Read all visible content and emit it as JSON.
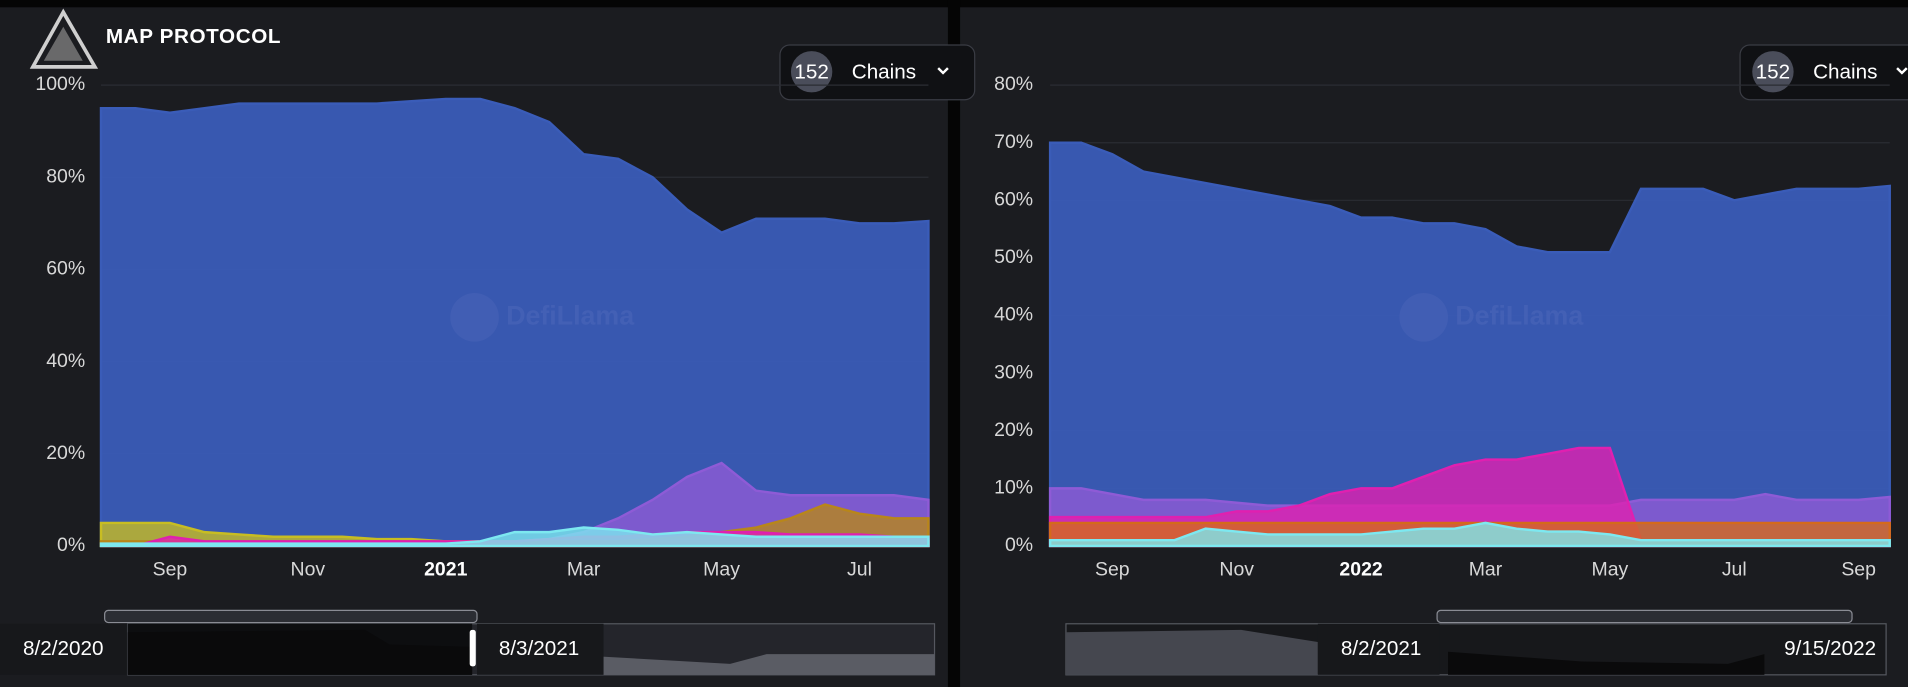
{
  "header": {
    "logo": "MAP PROTOCOL"
  },
  "panels": [
    {
      "chain_count": 152,
      "chain_button": "Chains",
      "watermark": "DefiLlama",
      "range_start": "8/2/2020",
      "range_end": "8/3/2021"
    },
    {
      "chain_count": 152,
      "chain_button": "Chains",
      "watermark": "DefiLlama",
      "range_start": "8/2/2021",
      "range_end": "9/15/2022"
    }
  ],
  "chart_data": [
    {
      "type": "area",
      "categories": [
        null,
        null,
        "Sep",
        null,
        null,
        null,
        "Nov",
        null,
        null,
        null,
        "2021",
        null,
        null,
        null,
        "Mar",
        null,
        null,
        null,
        "May",
        null,
        null,
        null,
        "Jul",
        null,
        null
      ],
      "ylim": [
        0,
        100
      ],
      "yticks": [
        {
          "value": 0,
          "label": "0%"
        },
        {
          "value": 20,
          "label": "20%"
        },
        {
          "value": 40,
          "label": "40%"
        },
        {
          "value": 60,
          "label": "60%"
        },
        {
          "value": 80,
          "label": "80%"
        },
        {
          "value": 100,
          "label": "100%"
        }
      ],
      "grid": true,
      "series": [
        {
          "color": "#3a5cb8",
          "values": [
            95,
            95,
            94,
            95,
            96,
            96,
            96,
            96,
            96,
            96.5,
            97,
            97,
            95,
            92,
            85,
            84,
            80,
            73,
            68,
            71,
            71,
            71,
            70,
            70,
            70.5
          ]
        },
        {
          "color": "#8e5bd6",
          "values": [
            0.5,
            0.5,
            0.5,
            0.5,
            0.5,
            0.5,
            0.5,
            0.5,
            0.5,
            0.5,
            0.5,
            0.5,
            1,
            1.5,
            3,
            6,
            10,
            15,
            18,
            12,
            11,
            11,
            11,
            11,
            10
          ]
        },
        {
          "color": "#c8bd22",
          "values": [
            5,
            5,
            5,
            3,
            2.5,
            2,
            2,
            2,
            1.5,
            1.5,
            1,
            1,
            1,
            1,
            1,
            1,
            1,
            1,
            1,
            1,
            1,
            1,
            1,
            1,
            1
          ]
        },
        {
          "color": "#b8861a",
          "values": [
            1,
            1,
            1,
            1,
            1,
            1,
            1,
            1,
            1,
            1,
            1,
            1,
            1,
            1,
            1,
            1,
            1.5,
            2,
            3,
            4,
            6,
            9,
            7,
            6,
            6
          ]
        },
        {
          "color": "#e020b0",
          "values": [
            0,
            0,
            2,
            1,
            1,
            1,
            1,
            1,
            1,
            1,
            1,
            1,
            1,
            1.5,
            2,
            2,
            2.5,
            3,
            3,
            3,
            2.5,
            2.5,
            2.5,
            2,
            2
          ]
        },
        {
          "color": "#7de8f0",
          "values": [
            0.5,
            0.5,
            0.5,
            0.5,
            0.5,
            0.5,
            0.5,
            0.5,
            0.5,
            0.5,
            0.5,
            1,
            3,
            3,
            4,
            3.5,
            2.5,
            3,
            2.5,
            2,
            2,
            2,
            2,
            2,
            2
          ]
        }
      ]
    },
    {
      "type": "area",
      "categories": [
        null,
        null,
        "Sep",
        null,
        null,
        null,
        "Nov",
        null,
        null,
        null,
        "2022",
        null,
        null,
        null,
        "Mar",
        null,
        null,
        null,
        "May",
        null,
        null,
        null,
        "Jul",
        null,
        null,
        null,
        "Sep",
        null
      ],
      "ylim": [
        0,
        80
      ],
      "yticks": [
        {
          "value": 0,
          "label": "0%"
        },
        {
          "value": 10,
          "label": "10%"
        },
        {
          "value": 20,
          "label": "20%"
        },
        {
          "value": 30,
          "label": "30%"
        },
        {
          "value": 40,
          "label": "40%"
        },
        {
          "value": 50,
          "label": "50%"
        },
        {
          "value": 60,
          "label": "60%"
        },
        {
          "value": 70,
          "label": "70%"
        },
        {
          "value": 80,
          "label": "80%"
        }
      ],
      "grid": true,
      "series": [
        {
          "color": "#3a5cb8",
          "values": [
            70,
            70,
            68,
            65,
            64,
            63,
            62,
            61,
            60,
            59,
            57,
            57,
            56,
            56,
            55,
            52,
            51,
            51,
            51,
            62,
            62,
            62,
            60,
            61,
            62,
            62,
            62,
            62.5
          ]
        },
        {
          "color": "#8e5bd6",
          "values": [
            10,
            10,
            9,
            8,
            8,
            8,
            7.5,
            7,
            7,
            7,
            7,
            7,
            7,
            7,
            7,
            7,
            7,
            7,
            7,
            8,
            8,
            8,
            8,
            9,
            8,
            8,
            8,
            8.5
          ]
        },
        {
          "color": "#e020b0",
          "values": [
            5,
            5,
            5,
            5,
            5,
            5,
            6,
            6,
            7,
            9,
            10,
            10,
            12,
            14,
            15,
            15,
            16,
            17,
            17,
            1,
            1,
            1,
            1,
            1,
            1,
            1,
            1,
            1
          ]
        },
        {
          "color": "#d46a1c",
          "values": [
            4,
            4,
            4,
            4,
            4,
            4,
            4,
            4,
            4,
            4,
            4,
            4,
            4,
            4,
            4,
            4,
            4,
            4,
            4,
            4,
            4,
            4,
            4,
            4,
            4,
            4,
            4,
            4
          ]
        },
        {
          "color": "#7de8f0",
          "values": [
            1,
            1,
            1,
            1,
            1,
            3,
            2.5,
            2,
            2,
            2,
            2,
            2.5,
            3,
            3,
            4,
            3,
            2.5,
            2.5,
            2,
            1,
            1,
            1,
            1,
            1,
            1,
            1,
            1,
            1
          ]
        }
      ]
    }
  ]
}
